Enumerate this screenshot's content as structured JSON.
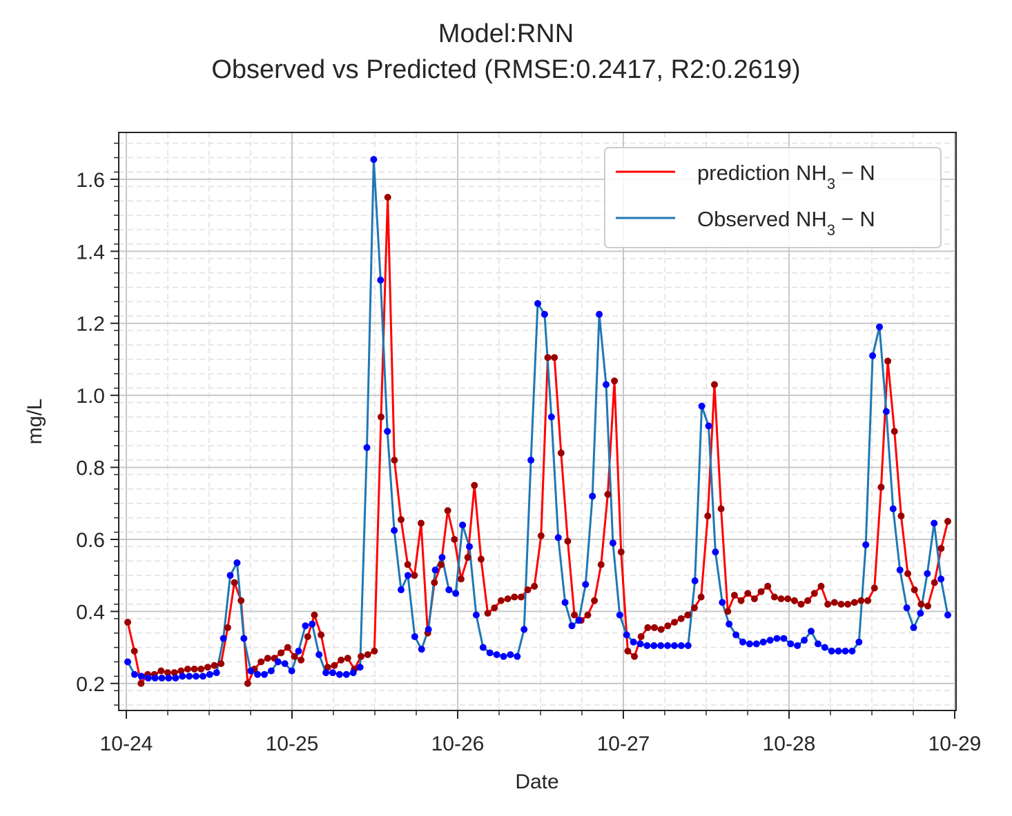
{
  "chart_data": {
    "type": "line",
    "title": "Model:RNN",
    "subtitle": "Observed vs Predicted (RMSE:0.2417, R2:0.2619)",
    "xlabel": "Date",
    "ylabel": "mg/L",
    "x_start_date": "10-24",
    "x_end_date": "10-29",
    "x_ticks": [
      "10-24",
      "10-25",
      "10-26",
      "10-27",
      "10-28",
      "10-29"
    ],
    "y_ticks": [
      "0.2",
      "0.4",
      "0.6",
      "0.8",
      "1.0",
      "1.2",
      "1.4",
      "1.6"
    ],
    "ylim": [
      0.125,
      1.73
    ],
    "grid": true,
    "legend_position": "top-right",
    "series": [
      {
        "name": "prediction NH3 - N",
        "label_html": "prediction NH<tspan baseline-shift='sub' font-size='22'>3</tspan> &#8722; N",
        "color": "#ff0000",
        "marker_color": "#9b0000",
        "values": [
          0.37,
          0.29,
          0.2,
          0.225,
          0.225,
          0.235,
          0.23,
          0.23,
          0.235,
          0.24,
          0.24,
          0.24,
          0.245,
          0.25,
          0.255,
          0.355,
          0.48,
          0.43,
          0.2,
          0.24,
          0.26,
          0.27,
          0.27,
          0.285,
          0.3,
          0.275,
          0.265,
          0.33,
          0.39,
          0.335,
          0.245,
          0.25,
          0.265,
          0.27,
          0.24,
          0.275,
          0.28,
          0.29,
          0.94,
          1.55,
          0.82,
          0.655,
          0.53,
          0.5,
          0.645,
          0.34,
          0.48,
          0.53,
          0.68,
          0.6,
          0.49,
          0.55,
          0.75,
          0.545,
          0.395,
          0.41,
          0.43,
          0.435,
          0.44,
          0.44,
          0.46,
          0.47,
          0.61,
          1.105,
          1.105,
          0.84,
          0.595,
          0.39,
          0.375,
          0.39,
          0.43,
          0.53,
          0.725,
          1.04,
          0.565,
          0.29,
          0.275,
          0.33,
          0.355,
          0.355,
          0.35,
          0.36,
          0.37,
          0.38,
          0.39,
          0.41,
          0.44,
          0.665,
          1.03,
          0.685,
          0.4,
          0.445,
          0.43,
          0.45,
          0.435,
          0.455,
          0.47,
          0.44,
          0.435,
          0.435,
          0.43,
          0.42,
          0.43,
          0.45,
          0.47,
          0.42,
          0.425,
          0.42,
          0.42,
          0.425,
          0.43,
          0.43,
          0.465,
          0.745,
          1.095,
          0.9,
          0.665,
          0.505,
          0.46,
          0.42,
          0.415,
          0.48,
          0.575,
          0.65
        ]
      },
      {
        "name": "Observed NH3 - N",
        "label_html": "Observed NH<tspan baseline-shift='sub' font-size='22'>3</tspan> &#8722; N",
        "color": "#1f77b4",
        "marker_color": "#0000ff",
        "values": [
          0.26,
          0.225,
          0.22,
          0.215,
          0.215,
          0.215,
          0.215,
          0.215,
          0.22,
          0.22,
          0.22,
          0.22,
          0.225,
          0.23,
          0.325,
          0.5,
          0.535,
          0.325,
          0.235,
          0.225,
          0.225,
          0.235,
          0.26,
          0.255,
          0.235,
          0.29,
          0.36,
          0.365,
          0.28,
          0.23,
          0.23,
          0.225,
          0.225,
          0.23,
          0.245,
          0.855,
          1.655,
          1.32,
          0.9,
          0.625,
          0.46,
          0.5,
          0.33,
          0.295,
          0.35,
          0.515,
          0.55,
          0.46,
          0.45,
          0.64,
          0.58,
          0.39,
          0.3,
          0.285,
          0.28,
          0.275,
          0.28,
          0.275,
          0.35,
          0.82,
          1.255,
          1.225,
          0.94,
          0.605,
          0.425,
          0.36,
          0.375,
          0.475,
          0.72,
          1.225,
          1.03,
          0.59,
          0.39,
          0.335,
          0.315,
          0.31,
          0.305,
          0.305,
          0.305,
          0.305,
          0.305,
          0.305,
          0.305,
          0.485,
          0.97,
          0.915,
          0.565,
          0.425,
          0.365,
          0.335,
          0.315,
          0.31,
          0.31,
          0.315,
          0.32,
          0.325,
          0.325,
          0.31,
          0.305,
          0.32,
          0.345,
          0.31,
          0.3,
          0.29,
          0.29,
          0.29,
          0.29,
          0.315,
          0.585,
          1.11,
          1.19,
          0.955,
          0.685,
          0.515,
          0.41,
          0.355,
          0.395,
          0.505,
          0.645,
          0.49,
          0.39
        ]
      }
    ]
  }
}
